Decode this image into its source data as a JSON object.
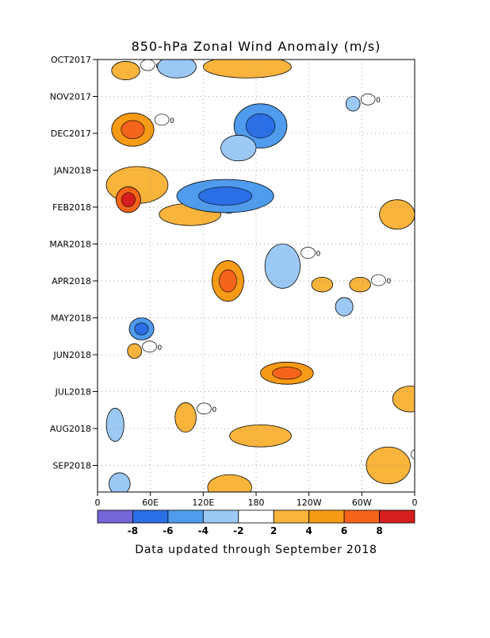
{
  "chart_data": {
    "type": "heatmap",
    "title": "850-hPa Zonal Wind Anomaly (m/s)",
    "footnote": "Data updated through September 2018",
    "x_ticks": [
      "0",
      "60E",
      "120E",
      "180",
      "120W",
      "60W",
      "0"
    ],
    "x_range": [
      0,
      360
    ],
    "y_ticks": [
      "OCT2017",
      "NOV2017",
      "DEC2017",
      "JAN2018",
      "FEB2018",
      "MAR2018",
      "APR2018",
      "MAY2018",
      "JUN2018",
      "JUL2018",
      "AUG2018",
      "SEP2018"
    ],
    "grid": "dotted",
    "contour_labels": [
      "0"
    ],
    "colorbar": {
      "labels": [
        "-8",
        "-6",
        "-4",
        "-2",
        "2",
        "4",
        "6",
        "8"
      ],
      "colors": [
        "#7466d8",
        "#2b6fe6",
        "#4f9bed",
        "#9cc8f5",
        "#ffffff",
        "#f9b43c",
        "#f79a16",
        "#f5641a",
        "#d71e1e"
      ]
    },
    "anomaly_regions": [
      {
        "lon": 32,
        "month": 0.3,
        "dlon": 16,
        "dmonth": 0.25,
        "value": 3.5
      },
      {
        "lon": 90,
        "month": 0.2,
        "dlon": 22,
        "dmonth": 0.3,
        "value": -2.5
      },
      {
        "lon": 170,
        "month": 0.2,
        "dlon": 50,
        "dmonth": 0.3,
        "value": 2.5
      },
      {
        "lon": 40,
        "month": 1.9,
        "dlon": 24,
        "dmonth": 0.45,
        "value": 4.0
      },
      {
        "lon": 185,
        "month": 1.8,
        "dlon": 30,
        "dmonth": 0.6,
        "value": -4.5
      },
      {
        "lon": 160,
        "month": 2.4,
        "dlon": 20,
        "dmonth": 0.35,
        "value": -2.5
      },
      {
        "lon": 290,
        "month": 1.2,
        "dlon": 8,
        "dmonth": 0.2,
        "value": -2.5
      },
      {
        "lon": 45,
        "month": 3.4,
        "dlon": 35,
        "dmonth": 0.5,
        "value": 3.5
      },
      {
        "lon": 35,
        "month": 3.8,
        "dlon": 14,
        "dmonth": 0.35,
        "value": 6.5
      },
      {
        "lon": 105,
        "month": 4.2,
        "dlon": 35,
        "dmonth": 0.3,
        "value": 2.5
      },
      {
        "lon": 145,
        "month": 3.7,
        "dlon": 55,
        "dmonth": 0.45,
        "value": -4.5
      },
      {
        "lon": 340,
        "month": 4.2,
        "dlon": 20,
        "dmonth": 0.4,
        "value": 3.5
      },
      {
        "lon": 210,
        "month": 5.6,
        "dlon": 20,
        "dmonth": 0.6,
        "value": -3.5
      },
      {
        "lon": 148,
        "month": 6.0,
        "dlon": 18,
        "dmonth": 0.55,
        "value": 5.5
      },
      {
        "lon": 255,
        "month": 6.1,
        "dlon": 12,
        "dmonth": 0.2,
        "value": 2.5
      },
      {
        "lon": 298,
        "month": 6.1,
        "dlon": 12,
        "dmonth": 0.2,
        "value": 2.5
      },
      {
        "lon": 280,
        "month": 6.7,
        "dlon": 10,
        "dmonth": 0.25,
        "value": -2.5
      },
      {
        "lon": 50,
        "month": 7.3,
        "dlon": 14,
        "dmonth": 0.3,
        "value": -4.5
      },
      {
        "lon": 42,
        "month": 7.9,
        "dlon": 8,
        "dmonth": 0.2,
        "value": 3.5
      },
      {
        "lon": 215,
        "month": 8.5,
        "dlon": 30,
        "dmonth": 0.3,
        "value": 4.5
      },
      {
        "lon": 355,
        "month": 9.2,
        "dlon": 20,
        "dmonth": 0.35,
        "value": 2.5
      },
      {
        "lon": 100,
        "month": 9.7,
        "dlon": 12,
        "dmonth": 0.4,
        "value": 2.5
      },
      {
        "lon": 20,
        "month": 9.9,
        "dlon": 10,
        "dmonth": 0.45,
        "value": -2.5
      },
      {
        "lon": 185,
        "month": 10.2,
        "dlon": 35,
        "dmonth": 0.3,
        "value": 2.5
      },
      {
        "lon": 330,
        "month": 11.0,
        "dlon": 25,
        "dmonth": 0.5,
        "value": 3.5
      },
      {
        "lon": 150,
        "month": 11.6,
        "dlon": 25,
        "dmonth": 0.35,
        "value": 3.0
      },
      {
        "lon": 25,
        "month": 11.5,
        "dlon": 12,
        "dmonth": 0.3,
        "value": -2.5
      }
    ]
  }
}
